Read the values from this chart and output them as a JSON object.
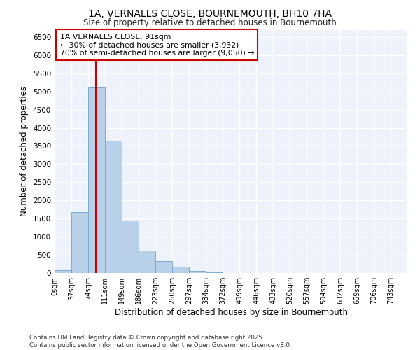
{
  "title_line1": "1A, VERNALLS CLOSE, BOURNEMOUTH, BH10 7HA",
  "title_line2": "Size of property relative to detached houses in Bournemouth",
  "xlabel": "Distribution of detached houses by size in Bournemouth",
  "ylabel": "Number of detached properties",
  "annotation_title": "1A VERNALLS CLOSE: 91sqm",
  "annotation_line1": "← 30% of detached houses are smaller (3,932)",
  "annotation_line2": "70% of semi-detached houses are larger (9,050) →",
  "footer_line1": "Contains HM Land Registry data © Crown copyright and database right 2025.",
  "footer_line2": "Contains public sector information licensed under the Open Government Licence v3.0.",
  "bar_color": "#b8d0e8",
  "bar_edge_color": "#7aadd4",
  "background_color": "#eef2fa",
  "grid_color": "#ffffff",
  "red_line_x": 91,
  "annotation_box_color": "#ffffff",
  "annotation_box_edge": "#cc0000",
  "categories": [
    "0sqm",
    "37sqm",
    "74sqm",
    "111sqm",
    "149sqm",
    "186sqm",
    "223sqm",
    "260sqm",
    "297sqm",
    "334sqm",
    "372sqm",
    "409sqm",
    "446sqm",
    "483sqm",
    "520sqm",
    "557sqm",
    "594sqm",
    "632sqm",
    "669sqm",
    "706sqm",
    "743sqm"
  ],
  "bin_edges": [
    0,
    37,
    74,
    111,
    149,
    186,
    223,
    260,
    297,
    334,
    372,
    409,
    446,
    483,
    520,
    557,
    594,
    632,
    669,
    706,
    743,
    780
  ],
  "bar_heights": [
    75,
    1670,
    5100,
    3650,
    1450,
    620,
    320,
    170,
    50,
    25,
    5,
    2,
    1,
    0,
    0,
    0,
    0,
    0,
    0,
    0,
    0
  ],
  "ylim": [
    0,
    6700
  ],
  "yticks": [
    0,
    500,
    1000,
    1500,
    2000,
    2500,
    3000,
    3500,
    4000,
    4500,
    5000,
    5500,
    6000,
    6500
  ]
}
